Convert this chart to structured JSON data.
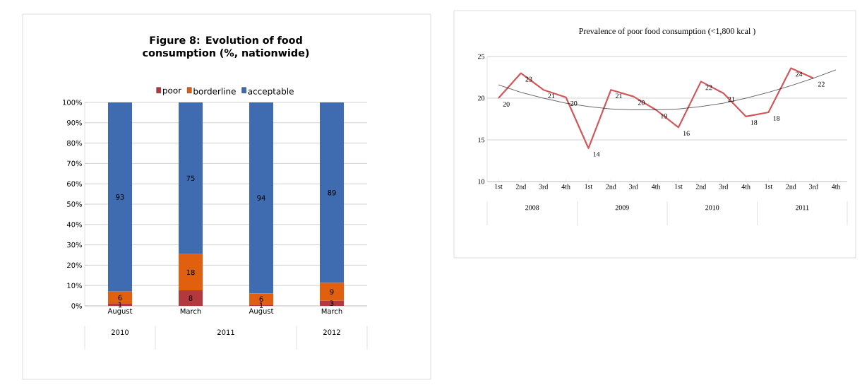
{
  "chart_data": [
    {
      "type": "bar",
      "stacked": true,
      "title": "Figure 8: Evolution of food consumption (%, nationwide)",
      "categories": [
        "August",
        "March",
        "August",
        "March"
      ],
      "annotations": [
        "2010",
        "2011",
        "2012"
      ],
      "series": [
        {
          "name": "poor",
          "color": "#b4393f",
          "values": [
            1,
            7.6,
            0.6,
            2.6
          ],
          "value_labels": [
            "1",
            "8",
            "1",
            "3"
          ]
        },
        {
          "name": "borderline",
          "color": "#e0600f",
          "values": [
            6,
            17.8,
            5.6,
            8.7
          ],
          "value_labels": [
            "6",
            "18",
            "6",
            "9"
          ]
        },
        {
          "name": "acceptable",
          "color": "#3f6cb0",
          "values": [
            93,
            74.6,
            93.8,
            88.7
          ],
          "value_labels": [
            "93",
            "75",
            "94",
            "89"
          ]
        }
      ],
      "ylim": [
        0,
        100
      ],
      "yticks": [
        {
          "value": 0,
          "label": "0%"
        },
        {
          "value": 10,
          "label": "10%"
        },
        {
          "value": 20,
          "label": "20%"
        },
        {
          "value": 30,
          "label": "30%"
        },
        {
          "value": 40,
          "label": "40%"
        },
        {
          "value": 50,
          "label": "50%"
        },
        {
          "value": 60,
          "label": "60%"
        },
        {
          "value": 70,
          "label": "70%"
        },
        {
          "value": 80,
          "label": "80%"
        },
        {
          "value": 90,
          "label": "90%"
        },
        {
          "value": 100,
          "label": "100%"
        }
      ],
      "grid": "y",
      "legend": "top"
    },
    {
      "type": "line",
      "title": "Prevalence of poor food consumption (<1,800 kcal )",
      "categories": [
        "1st",
        "2nd",
        "3rd",
        "4th",
        "1st",
        "2nd",
        "3rd",
        "4th",
        "1st",
        "2nd",
        "3rd",
        "4th",
        "1st",
        "2nd",
        "3rd",
        "4th"
      ],
      "annotations": [
        "2008",
        "2009",
        "2010",
        "2011"
      ],
      "series": [
        {
          "color": "#d0575a",
          "values": [
            20,
            23,
            21,
            20.1,
            14,
            21,
            20.2,
            18.6,
            16.5,
            22,
            20.6,
            17.8,
            18.3,
            23.6,
            22.4,
            null
          ],
          "value_labels": [
            "20",
            "23",
            "21",
            "20",
            "14",
            "21",
            "20",
            "19",
            "16",
            "22",
            "21",
            "18",
            "18",
            "24",
            "22",
            null
          ]
        },
        {
          "type": "line",
          "color": "#000000",
          "values": [
            21.6,
            20.7,
            20,
            19.4,
            19,
            18.7,
            18.6,
            18.6,
            18.7,
            19,
            19.4,
            20,
            20.7,
            21.5,
            22.4,
            23.4
          ]
        }
      ],
      "ylim": [
        10,
        25
      ],
      "yticks": [
        10,
        15,
        20,
        25
      ],
      "grid": "y"
    }
  ]
}
